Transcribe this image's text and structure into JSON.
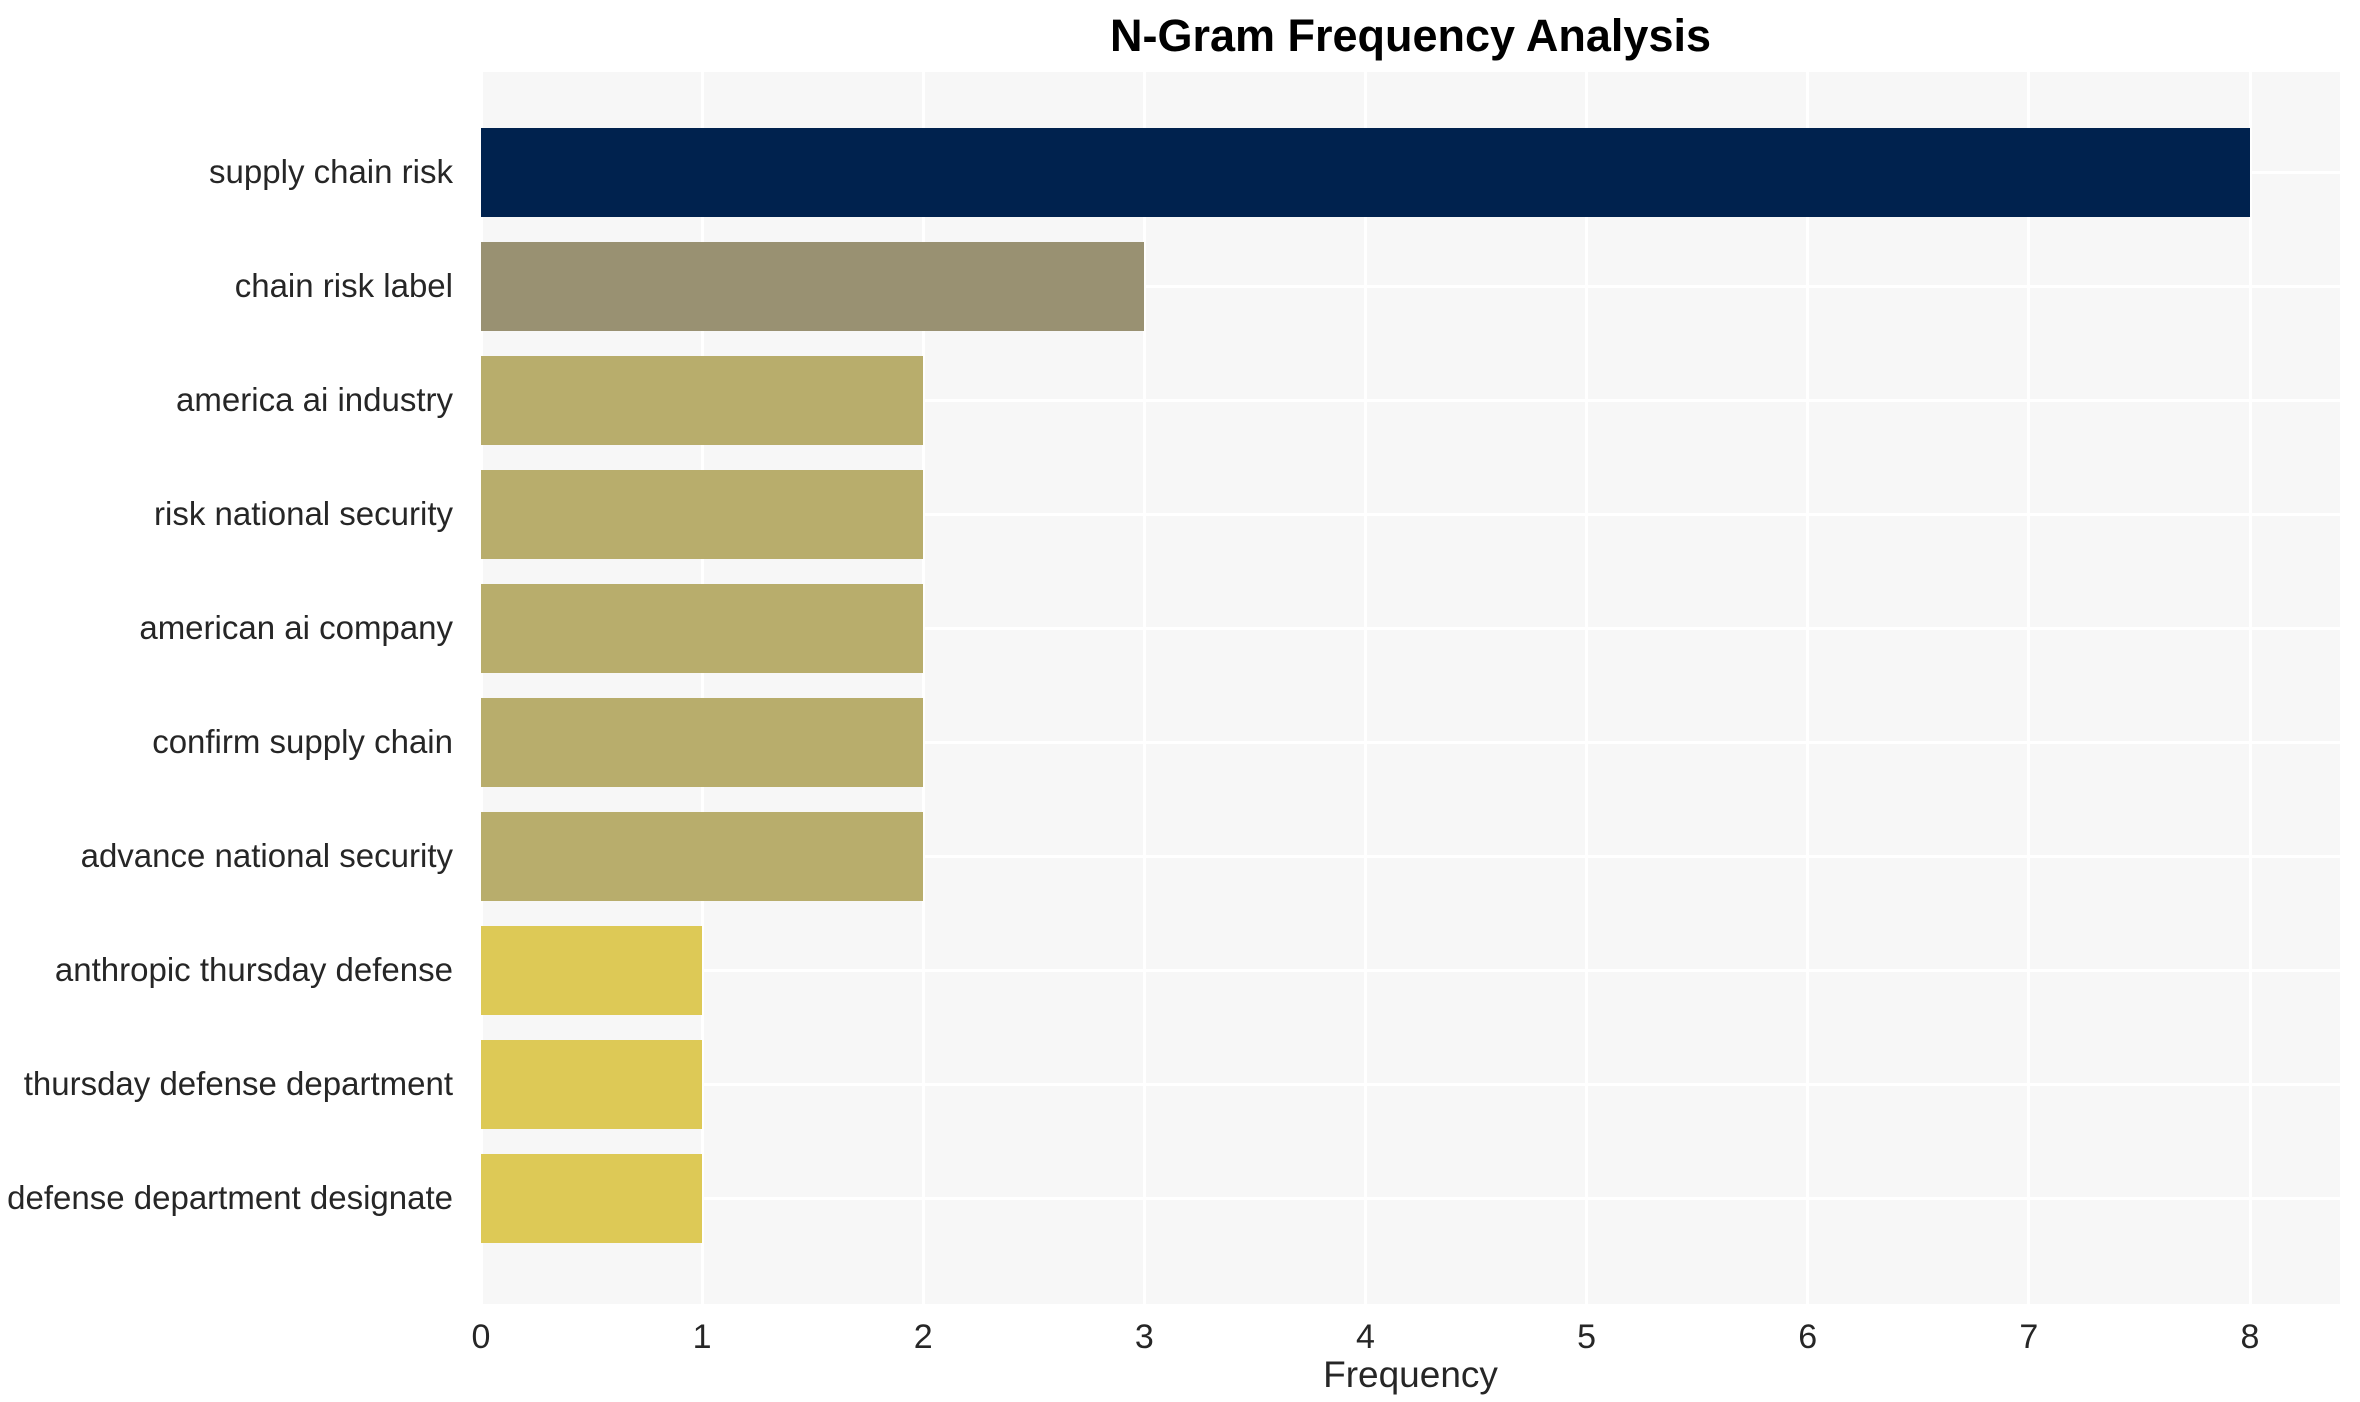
{
  "title": "N-Gram Frequency Analysis",
  "chart_data": {
    "type": "bar",
    "orientation": "horizontal",
    "title": "N-Gram Frequency Analysis",
    "xlabel": "Frequency",
    "ylabel": "",
    "categories": [
      "supply chain risk",
      "chain risk label",
      "america ai industry",
      "risk national security",
      "american ai company",
      "confirm supply chain",
      "advance national security",
      "anthropic thursday defense",
      "thursday defense department",
      "defense department designate"
    ],
    "values": [
      8,
      3,
      2,
      2,
      2,
      2,
      2,
      1,
      1,
      1
    ],
    "bar_colors": [
      "#00224e",
      "#999172",
      "#b8ad6c",
      "#b8ad6c",
      "#b8ad6c",
      "#b8ad6c",
      "#b8ad6c",
      "#ddc956",
      "#ddc956",
      "#ddc956"
    ],
    "xticks": [
      0,
      1,
      2,
      3,
      4,
      5,
      6,
      7,
      8
    ],
    "xlim": [
      0,
      8.41
    ],
    "grid": true,
    "legend": "none",
    "plot_background": "#f7f7f7",
    "grid_color": "#ffffff",
    "text_color": "#262626"
  }
}
